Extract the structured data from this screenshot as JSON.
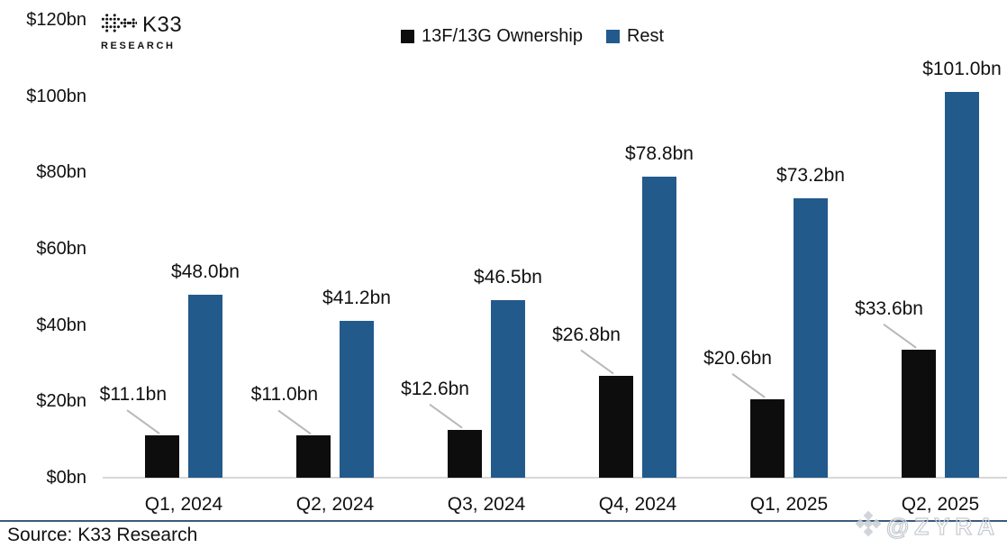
{
  "header": {
    "logo": {
      "text": "K33",
      "subtext": "RESEARCH"
    }
  },
  "legend": {
    "items": [
      {
        "label": "13F/13G Ownership",
        "color": "#0d0d0d"
      },
      {
        "label": "Rest",
        "color": "#235A8C"
      }
    ]
  },
  "footer": {
    "source": "Source: K33 Research",
    "watermark": "@ZYRA"
  },
  "chart_data": {
    "type": "bar",
    "title": "",
    "xlabel": "",
    "ylabel": "",
    "categories": [
      "Q1, 2024",
      "Q2, 2024",
      "Q3, 2024",
      "Q4, 2024",
      "Q1, 2025",
      "Q2, 2025"
    ],
    "series": [
      {
        "name": "13F/13G Ownership",
        "color": "#0d0d0d",
        "values": [
          11.1,
          11.0,
          12.6,
          26.8,
          20.6,
          33.6
        ],
        "labels": [
          "$11.1bn",
          "$11.0bn",
          "$12.6bn",
          "$26.8bn",
          "$20.6bn",
          "$33.6bn"
        ]
      },
      {
        "name": "Rest",
        "color": "#235A8C",
        "values": [
          48.0,
          41.2,
          46.5,
          78.8,
          73.2,
          101.0
        ],
        "labels": [
          "$48.0bn",
          "$41.2bn",
          "$46.5bn",
          "$78.8bn",
          "$73.2bn",
          "$101.0bn"
        ]
      }
    ],
    "ylim": [
      0,
      120
    ],
    "y_ticks": [
      {
        "value": 0,
        "label": "$0bn"
      },
      {
        "value": 20,
        "label": "$20bn"
      },
      {
        "value": 40,
        "label": "$40bn"
      },
      {
        "value": 60,
        "label": "$60bn"
      },
      {
        "value": 80,
        "label": "$80bn"
      },
      {
        "value": 100,
        "label": "$100bn"
      },
      {
        "value": 120,
        "label": "$120bn"
      }
    ],
    "grid": false,
    "legend_position": "top-center",
    "colors": {
      "leader_line": "#b8b8b8",
      "axis_line": "#d8d8d8",
      "separator": "#3C5A7D",
      "watermark": "#c6cbd1",
      "text": "#111111"
    }
  }
}
